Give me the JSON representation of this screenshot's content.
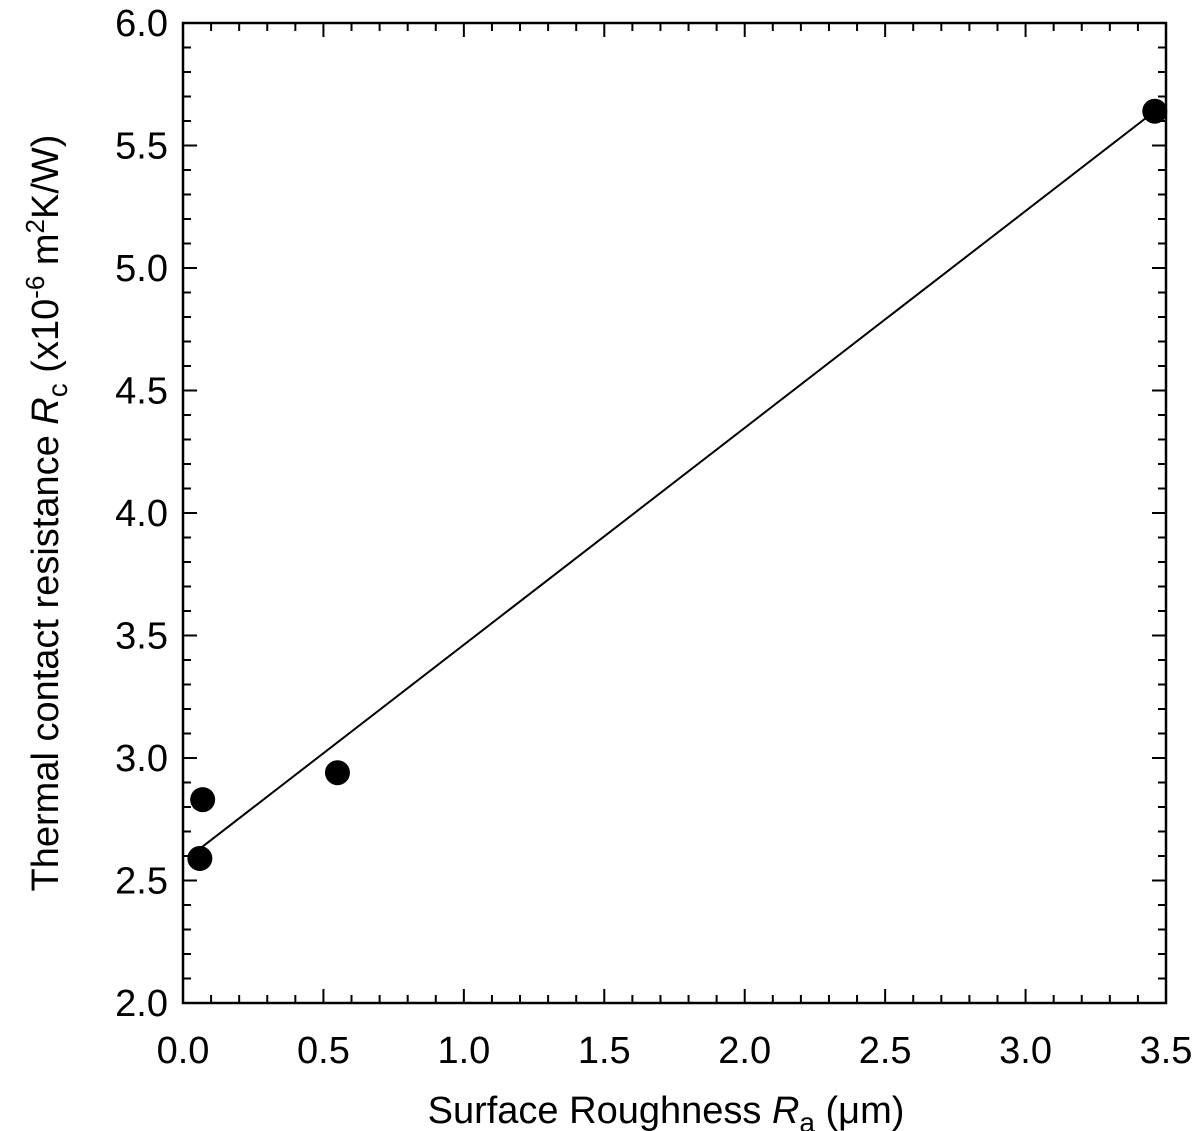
{
  "chart_data": {
    "type": "scatter",
    "xlabel": "Surface Roughness Ra (μm)",
    "ylabel": "Thermal contact resistance Rc (x10-6 m2K/W)",
    "xlabel_parts": {
      "pre": "Surface Roughness ",
      "var": "R",
      "sub": "a",
      "post": " (μm)"
    },
    "ylabel_parts": {
      "pre": "Thermal contact resistance ",
      "var": "R",
      "sub": "c",
      "mid": " (x10",
      "exp1": "-6",
      "unit": " m",
      "exp2": "2",
      "post": "K/W)"
    },
    "xlim": [
      0.0,
      3.5
    ],
    "ylim": [
      2.0,
      6.0
    ],
    "xticks": [
      0.0,
      0.5,
      1.0,
      1.5,
      2.0,
      2.5,
      3.0,
      3.5
    ],
    "yticks": [
      2.0,
      2.5,
      3.0,
      3.5,
      4.0,
      4.5,
      5.0,
      5.5,
      6.0
    ],
    "xtick_labels": [
      "0.0",
      "0.5",
      "1.0",
      "1.5",
      "2.0",
      "2.5",
      "3.0",
      "3.5"
    ],
    "ytick_labels": [
      "2.0",
      "2.5",
      "3.0",
      "3.5",
      "4.0",
      "4.5",
      "5.0",
      "5.5",
      "6.0"
    ],
    "grid": false,
    "series": [
      {
        "points": [
          {
            "x": 0.07,
            "y": 2.83
          },
          {
            "x": 0.06,
            "y": 2.59
          },
          {
            "x": 0.55,
            "y": 2.94
          },
          {
            "x": 3.46,
            "y": 5.64
          }
        ],
        "color": "#000000"
      }
    ],
    "fit_line": {
      "x": [
        0.06,
        3.46
      ],
      "y": [
        2.63,
        5.64
      ],
      "color": "#000000"
    }
  }
}
